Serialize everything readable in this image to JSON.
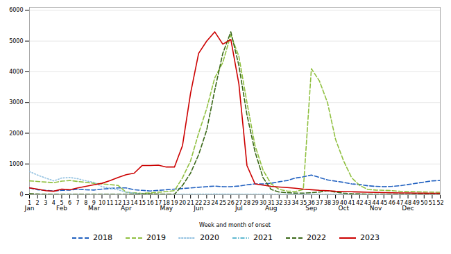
{
  "chart_data": {
    "type": "line",
    "xlabel": "Week and month of onset",
    "x": [
      1,
      2,
      3,
      4,
      5,
      6,
      7,
      8,
      9,
      10,
      11,
      12,
      13,
      14,
      15,
      16,
      17,
      18,
      19,
      20,
      21,
      22,
      23,
      24,
      25,
      26,
      27,
      28,
      29,
      30,
      31,
      32,
      33,
      34,
      35,
      36,
      37,
      38,
      39,
      40,
      41,
      42,
      43,
      44,
      45,
      46,
      47,
      48,
      49,
      50,
      51,
      52
    ],
    "series": [
      {
        "name": "2018",
        "color": "#2060c0",
        "line_style": "dashed",
        "values": [
          220,
          160,
          140,
          120,
          140,
          150,
          180,
          160,
          150,
          180,
          200,
          220,
          220,
          160,
          140,
          120,
          140,
          160,
          180,
          200,
          220,
          240,
          260,
          280,
          260,
          260,
          280,
          320,
          350,
          350,
          370,
          420,
          460,
          540,
          580,
          640,
          560,
          480,
          440,
          400,
          350,
          330,
          290,
          270,
          260,
          270,
          290,
          330,
          370,
          410,
          450,
          460
        ]
      },
      {
        "name": "2019",
        "color": "#90c040",
        "line_style": "dashed",
        "values": [
          450,
          430,
          410,
          390,
          440,
          460,
          430,
          400,
          370,
          350,
          330,
          300,
          80,
          60,
          40,
          60,
          80,
          100,
          130,
          550,
          1100,
          2000,
          2800,
          3800,
          4300,
          5200,
          4500,
          3000,
          1600,
          800,
          350,
          170,
          120,
          100,
          170,
          4100,
          3700,
          3000,
          1800,
          1100,
          550,
          300,
          170,
          150,
          140,
          130,
          110,
          100,
          95,
          88,
          82,
          78
        ]
      },
      {
        "name": "2020",
        "color": "#90c0e0",
        "line_style": "dotted",
        "values": [
          750,
          640,
          540,
          450,
          540,
          560,
          520,
          450,
          400,
          260,
          210,
          160,
          80,
          50,
          30,
          15,
          8,
          4,
          4,
          4,
          8,
          12,
          16,
          20,
          16,
          12,
          8,
          6,
          5,
          4,
          4,
          4,
          4,
          4,
          4,
          4,
          4,
          4,
          4,
          4,
          4,
          4,
          4,
          4,
          4,
          4,
          4,
          4,
          4,
          4,
          4,
          4
        ]
      },
      {
        "name": "2021",
        "color": "#60b8d0",
        "line_style": "dashdot",
        "values": [
          4,
          4,
          4,
          4,
          4,
          4,
          4,
          4,
          4,
          4,
          4,
          4,
          4,
          4,
          4,
          4,
          4,
          4,
          4,
          4,
          4,
          4,
          4,
          4,
          4,
          4,
          4,
          4,
          4,
          4,
          4,
          4,
          4,
          4,
          4,
          4,
          4,
          4,
          4,
          4,
          4,
          4,
          4,
          4,
          4,
          4,
          4,
          4,
          4,
          4,
          4,
          4
        ]
      },
      {
        "name": "2022",
        "color": "#3a6818",
        "line_style": "dashed",
        "values": [
          30,
          20,
          15,
          10,
          8,
          8,
          8,
          8,
          8,
          8,
          8,
          8,
          12,
          16,
          20,
          25,
          20,
          15,
          12,
          300,
          700,
          1300,
          2100,
          3400,
          4600,
          5300,
          4200,
          2600,
          1400,
          550,
          170,
          85,
          65,
          50,
          50,
          65,
          85,
          130,
          85,
          50,
          30,
          25,
          15,
          12,
          10,
          8,
          8,
          8,
          8,
          8,
          8,
          8
        ]
      },
      {
        "name": "2023",
        "color": "#cc0000",
        "line_style": "solid",
        "values": [
          220,
          180,
          130,
          110,
          180,
          160,
          220,
          270,
          320,
          370,
          460,
          560,
          650,
          700,
          950,
          950,
          960,
          900,
          900,
          1600,
          3300,
          4600,
          5000,
          5300,
          4900,
          5050,
          3600,
          950,
          350,
          310,
          270,
          250,
          230,
          210,
          180,
          160,
          140,
          130,
          110,
          100,
          95,
          88,
          78,
          72,
          68,
          62,
          58,
          58,
          52,
          48,
          46,
          44
        ]
      }
    ],
    "xlim": [
      1,
      52
    ],
    "xticks": [
      1,
      2,
      3,
      4,
      5,
      6,
      7,
      8,
      9,
      10,
      11,
      12,
      13,
      14,
      15,
      16,
      17,
      18,
      19,
      20,
      21,
      22,
      23,
      24,
      25,
      26,
      27,
      28,
      29,
      30,
      31,
      32,
      33,
      34,
      35,
      36,
      37,
      38,
      39,
      40,
      41,
      42,
      43,
      44,
      45,
      46,
      47,
      48,
      49,
      50,
      51,
      52
    ],
    "ylim": [
      0,
      6100
    ],
    "yticks": [
      0,
      1000,
      2000,
      3000,
      4000,
      5000,
      6000
    ],
    "grid": "y",
    "legend": "bottom",
    "annotations": [
      {
        "text": "Jan",
        "x": 1
      },
      {
        "text": "Feb",
        "x": 5
      },
      {
        "text": "Mar",
        "x": 9
      },
      {
        "text": "Apr",
        "x": 13
      },
      {
        "text": "May",
        "x": 18
      },
      {
        "text": "Jun",
        "x": 22
      },
      {
        "text": "Jul",
        "x": 27
      },
      {
        "text": "Aug",
        "x": 31
      },
      {
        "text": "Sep",
        "x": 36
      },
      {
        "text": "Oct",
        "x": 40
      },
      {
        "text": "Nov",
        "x": 44
      },
      {
        "text": "Dec",
        "x": 48
      }
    ]
  }
}
